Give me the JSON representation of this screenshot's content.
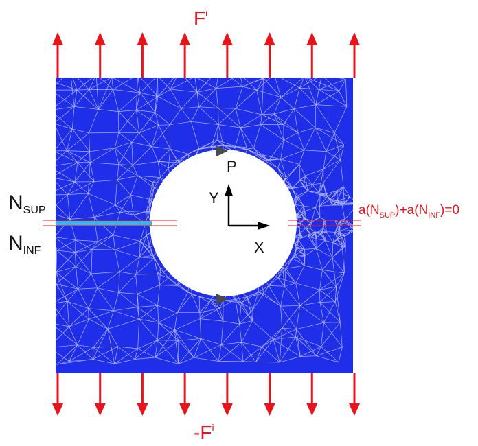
{
  "labels": {
    "force_top": "F",
    "force_top_sup": "i",
    "force_bottom": "-F",
    "force_bottom_sup": "i",
    "n_sup_main": "N",
    "n_sup_sub": "SUP",
    "n_inf_main": "N",
    "n_inf_sub": "INF",
    "axis_y": "Y",
    "axis_x": "X",
    "point_p": "P",
    "constraint_part1": "a(N",
    "constraint_sub1": "SUP",
    "constraint_part2": ")+a(N",
    "constraint_sub2": "INF",
    "constraint_part3": ")=0"
  },
  "colors": {
    "plate": "#1f2ee8",
    "mesh": "#c9cdfb",
    "crack": "#35b5f0",
    "force": "#e8141c",
    "constraint_text": "#e8141c",
    "marker": "#4a4a4a",
    "text": "#111111"
  },
  "force_arrow_count_top": 8,
  "force_arrow_count_bottom": 8
}
